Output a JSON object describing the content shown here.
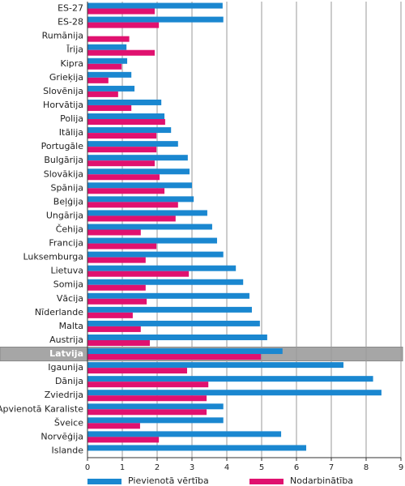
{
  "chart_data": {
    "type": "bar",
    "orientation": "horizontal",
    "categories": [
      "ES-27",
      "ES-28",
      "Rumānija",
      "Īrija",
      "Kipra",
      "Grieķija",
      "Slovēnija",
      "Horvātija",
      "Polija",
      "Itālija",
      "Portugāle",
      "Bulgārija",
      "Slovākija",
      "Spānija",
      "Beļģija",
      "Ungārija",
      "Čehija",
      "Francija",
      "Luksemburga",
      "Lietuva",
      "Somija",
      "Vācija",
      "Nīderlande",
      "Malta",
      "Austrija",
      "Latvija",
      "Igaunija",
      "Dānija",
      "Zviedrija",
      "Apvienotā Karaliste",
      "Šveice",
      "Norvēģija",
      "Islande"
    ],
    "series": [
      {
        "name": "Pievienotā vērtība",
        "color": "#1a87d0",
        "values": [
          3.88,
          3.9,
          null,
          1.12,
          1.14,
          1.26,
          1.35,
          2.12,
          2.21,
          2.4,
          2.6,
          2.88,
          2.93,
          3.0,
          3.05,
          3.44,
          3.58,
          3.72,
          3.9,
          4.26,
          4.47,
          4.65,
          4.72,
          4.95,
          5.16,
          5.6,
          7.35,
          8.2,
          8.44,
          3.9,
          3.9,
          5.56,
          6.28
        ]
      },
      {
        "name": "Nodarbinātība",
        "color": "#e0116f",
        "values": [
          1.93,
          2.05,
          1.2,
          1.93,
          0.98,
          0.6,
          0.88,
          1.26,
          2.23,
          1.98,
          1.98,
          1.93,
          2.07,
          2.21,
          2.6,
          2.53,
          1.53,
          1.98,
          1.67,
          2.91,
          1.67,
          1.7,
          1.3,
          1.53,
          1.79,
          4.98,
          2.86,
          3.47,
          3.42,
          3.42,
          1.51,
          2.05,
          null
        ]
      }
    ],
    "highlight": "Latvija",
    "xlim": [
      0,
      9
    ],
    "xticks": [
      0,
      1,
      2,
      3,
      4,
      5,
      6,
      7,
      8,
      9
    ],
    "grid": true,
    "legend": "bottom"
  }
}
